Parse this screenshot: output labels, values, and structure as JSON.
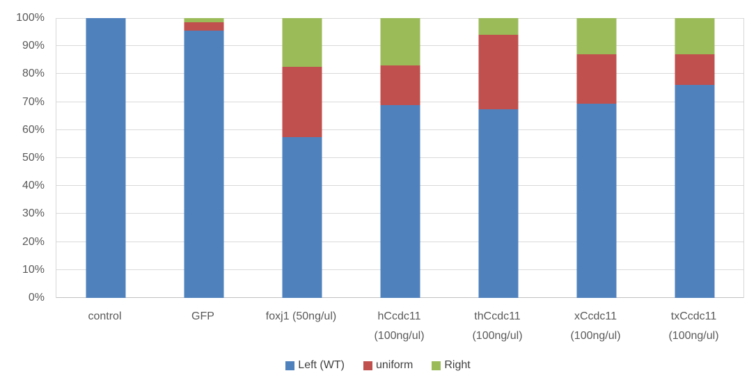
{
  "chart_data": {
    "type": "bar",
    "variant": "stacked-100-percent",
    "title": "",
    "xlabel": "",
    "ylabel": "",
    "grid": true,
    "legend_position": "bottom",
    "categories": [
      "control",
      "GFP",
      "foxj1 (50ng/ul)",
      "hCcdc11\n(100ng/ul)",
      "thCcdc11\n(100ng/ul)",
      "xCcdc11\n(100ng/ul)",
      "txCcdc11\n(100ng/ul)"
    ],
    "series": [
      {
        "name": "Left (WT)",
        "color": "#4f81bd",
        "values": [
          100,
          95.5,
          57.5,
          69,
          67.5,
          69.5,
          76
        ]
      },
      {
        "name": "uniform",
        "color": "#c0504d",
        "values": [
          0,
          3,
          25,
          14,
          26.5,
          17.5,
          11
        ]
      },
      {
        "name": "Right",
        "color": "#9bbb59",
        "values": [
          0,
          1.5,
          17.5,
          17,
          6,
          13,
          13
        ]
      }
    ],
    "y_axis": {
      "min": 0,
      "max": 100,
      "step": 10,
      "unit": "%",
      "tick_labels": [
        "0%",
        "10%",
        "20%",
        "30%",
        "40%",
        "50%",
        "60%",
        "70%",
        "80%",
        "90%",
        "100%"
      ]
    },
    "colors": {
      "gridline": "#d9d9d9",
      "axis_text": "#595959",
      "plot_border": "#d6d6d6"
    }
  }
}
